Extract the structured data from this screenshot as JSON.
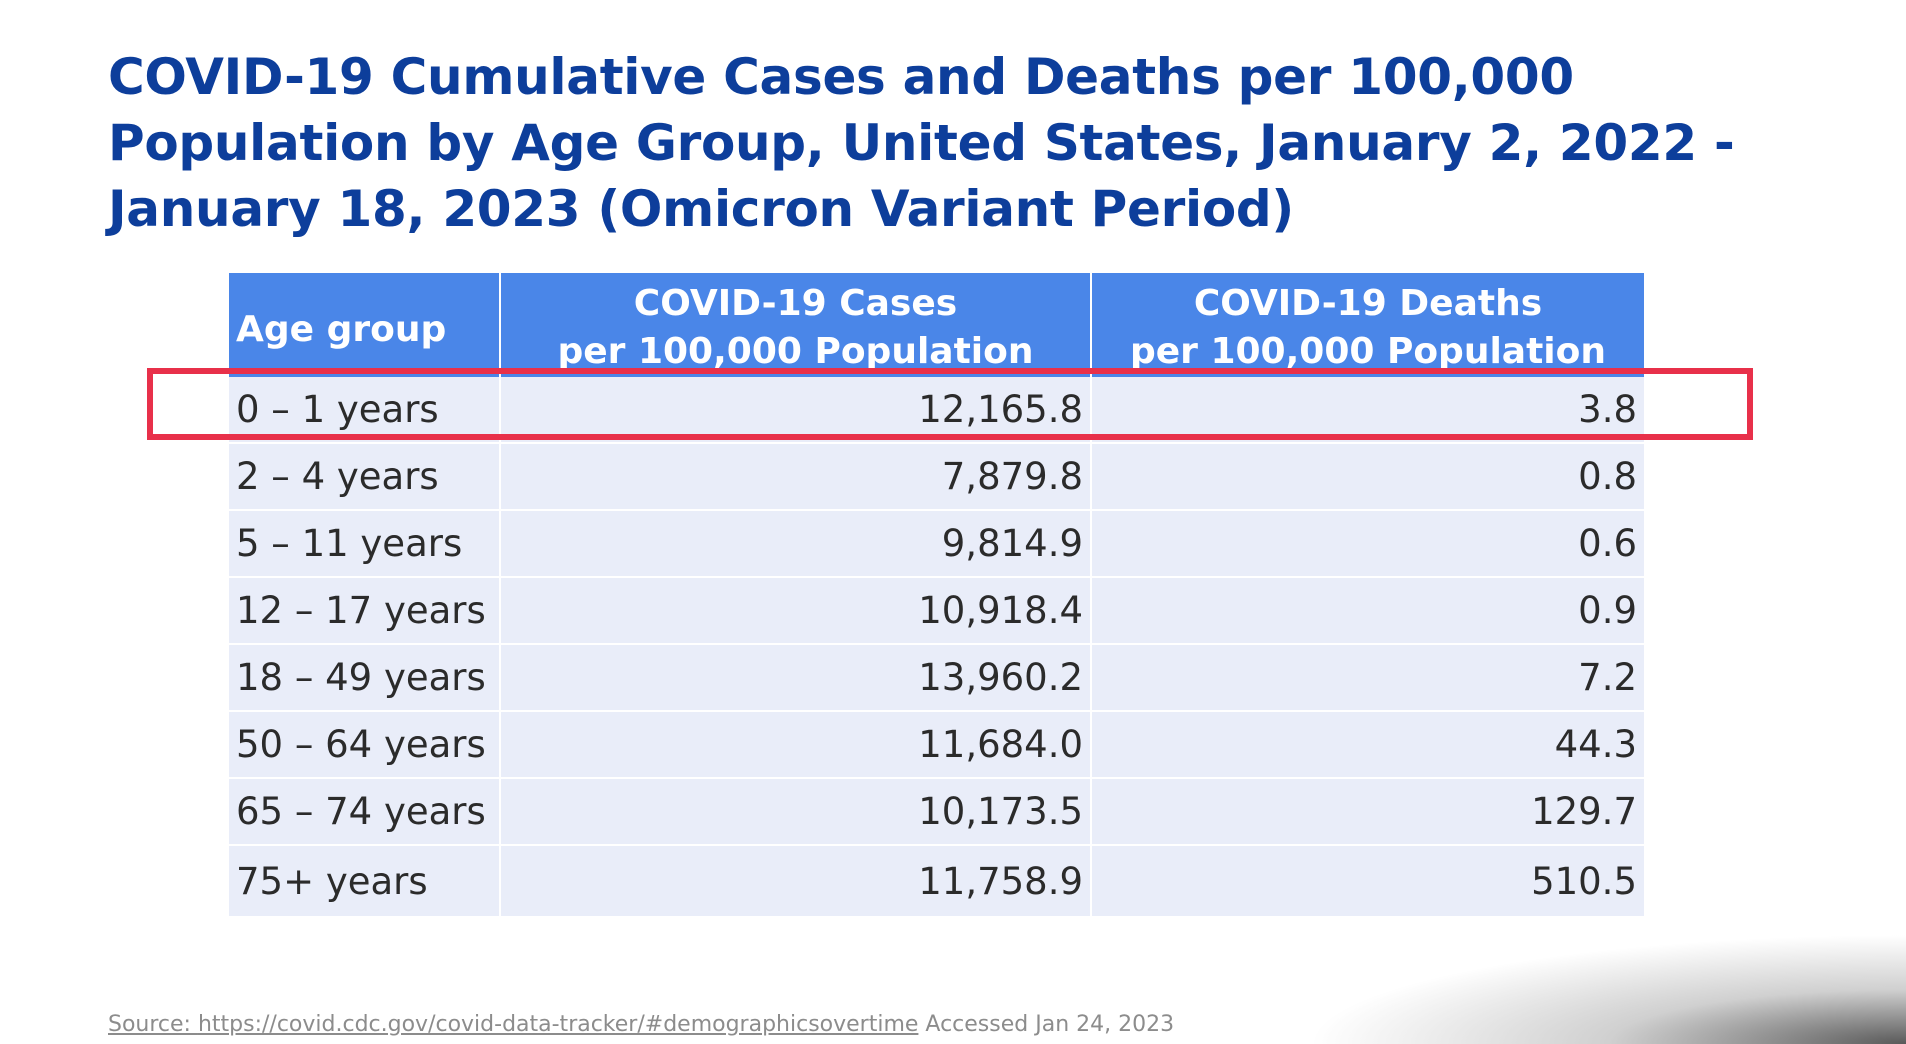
{
  "title": "COVID-19 Cumulative Cases and Deaths per 100,000 Population by Age Group, United States, January 2, 2022 - January 18, 2023 (Omicron Variant Period)",
  "table": {
    "headers": {
      "age": "Age group",
      "cases_line1": "COVID-19 Cases",
      "cases_line2": "per 100,000 Population",
      "deaths_line1": "COVID-19 Deaths",
      "deaths_line2": "per 100,000 Population"
    },
    "rows": [
      {
        "age": "0 – 1 years",
        "cases": "12,165.8",
        "deaths": "3.8"
      },
      {
        "age": "2 – 4 years",
        "cases": "7,879.8",
        "deaths": "0.8"
      },
      {
        "age": "5 – 11 years",
        "cases": "9,814.9",
        "deaths": "0.6"
      },
      {
        "age": "12 – 17 years",
        "cases": "10,918.4",
        "deaths": "0.9"
      },
      {
        "age": "18 – 49 years",
        "cases": "13,960.2",
        "deaths": "7.2"
      },
      {
        "age": "50 – 64 years",
        "cases": "11,684.0",
        "deaths": "44.3"
      },
      {
        "age": "65 – 74 years",
        "cases": "10,173.5",
        "deaths": "129.7"
      },
      {
        "age": "75+ years",
        "cases": "11,758.9",
        "deaths": "510.5"
      }
    ],
    "highlighted_row": 0
  },
  "source": {
    "prefix": "Source: ",
    "link": "https://covid.cdc.gov/covid-data-tracker/#demographicsovertime",
    "suffix": " Accessed Jan 24, 2023"
  },
  "colors": {
    "title": "#0d3e9b",
    "header_bg": "#4a86e8",
    "row_bg": "#e9edf9",
    "highlight": "#e8304a"
  }
}
